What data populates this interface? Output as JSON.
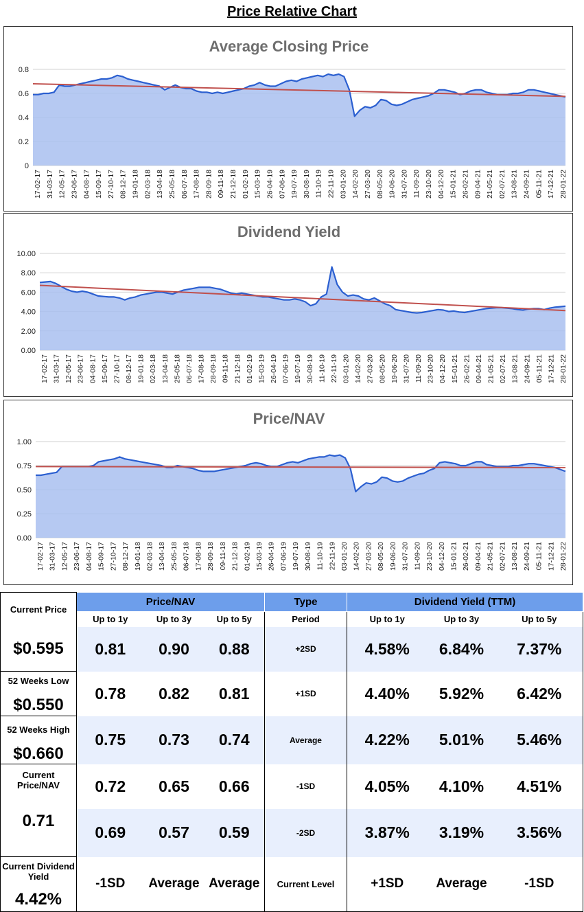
{
  "title": "Price Relative Chart",
  "x_tick_labels": [
    "17-02-17",
    "31-03-17",
    "12-05-17",
    "23-06-17",
    "04-08-17",
    "15-09-17",
    "27-10-17",
    "08-12-17",
    "19-01-18",
    "02-03-18",
    "13-04-18",
    "25-05-18",
    "06-07-18",
    "17-08-18",
    "28-09-18",
    "09-11-18",
    "21-12-18",
    "01-02-19",
    "15-03-19",
    "26-04-19",
    "07-06-19",
    "19-07-19",
    "30-08-19",
    "11-10-19",
    "22-11-19",
    "03-01-20",
    "14-02-20",
    "27-03-20",
    "08-05-20",
    "19-06-20",
    "31-07-20",
    "11-09-20",
    "23-10-20",
    "04-12-20",
    "15-01-21",
    "26-02-21",
    "09-04-21",
    "21-05-21",
    "02-07-21",
    "13-08-21",
    "24-09-21",
    "05-11-21",
    "17-12-21",
    "28-01-22"
  ],
  "chart_data": [
    {
      "type": "area",
      "title": "Average Closing Price",
      "ylim": [
        0,
        0.8
      ],
      "y_ticks": [
        "0",
        "0.2",
        "0.4",
        "0.6",
        "0.8"
      ],
      "y_tick_values": [
        0,
        0.2,
        0.4,
        0.6,
        0.8
      ],
      "trend": [
        0.68,
        0.575
      ],
      "values": [
        0.59,
        0.59,
        0.6,
        0.6,
        0.61,
        0.67,
        0.66,
        0.66,
        0.67,
        0.68,
        0.69,
        0.7,
        0.71,
        0.72,
        0.72,
        0.73,
        0.75,
        0.74,
        0.72,
        0.71,
        0.7,
        0.69,
        0.68,
        0.67,
        0.66,
        0.63,
        0.65,
        0.67,
        0.65,
        0.64,
        0.64,
        0.62,
        0.61,
        0.61,
        0.6,
        0.61,
        0.6,
        0.61,
        0.62,
        0.63,
        0.64,
        0.66,
        0.67,
        0.69,
        0.67,
        0.66,
        0.66,
        0.68,
        0.7,
        0.71,
        0.7,
        0.72,
        0.73,
        0.74,
        0.75,
        0.74,
        0.76,
        0.75,
        0.76,
        0.74,
        0.63,
        0.41,
        0.46,
        0.49,
        0.48,
        0.5,
        0.55,
        0.54,
        0.51,
        0.5,
        0.51,
        0.53,
        0.55,
        0.56,
        0.57,
        0.58,
        0.6,
        0.63,
        0.63,
        0.62,
        0.61,
        0.59,
        0.6,
        0.62,
        0.63,
        0.63,
        0.61,
        0.6,
        0.59,
        0.59,
        0.59,
        0.6,
        0.6,
        0.61,
        0.63,
        0.63,
        0.62,
        0.61,
        0.6,
        0.59,
        0.58,
        0.57
      ]
    },
    {
      "type": "area",
      "title": "Dividend Yield",
      "ylim": [
        0,
        10
      ],
      "y_ticks": [
        "0.00",
        "2.00",
        "4.00",
        "6.00",
        "8.00",
        "10.00"
      ],
      "y_tick_values": [
        0,
        2,
        4,
        6,
        8,
        10
      ],
      "trend": [
        6.7,
        4.1
      ],
      "values": [
        7.0,
        7.05,
        7.1,
        6.9,
        6.6,
        6.3,
        6.1,
        6.0,
        6.1,
        6.0,
        5.8,
        5.6,
        5.55,
        5.5,
        5.5,
        5.4,
        5.2,
        5.4,
        5.5,
        5.7,
        5.8,
        5.9,
        6.0,
        6.0,
        5.9,
        5.8,
        6.0,
        6.2,
        6.3,
        6.4,
        6.5,
        6.5,
        6.5,
        6.4,
        6.3,
        6.1,
        5.9,
        5.8,
        5.9,
        5.8,
        5.7,
        5.6,
        5.5,
        5.5,
        5.4,
        5.3,
        5.2,
        5.2,
        5.3,
        5.2,
        5.0,
        4.6,
        4.8,
        5.5,
        5.8,
        8.6,
        6.8,
        6.0,
        5.6,
        5.7,
        5.6,
        5.3,
        5.2,
        5.4,
        5.1,
        4.8,
        4.6,
        4.2,
        4.1,
        4.0,
        3.9,
        3.85,
        3.9,
        4.0,
        4.1,
        4.2,
        4.15,
        4.0,
        4.05,
        3.95,
        3.9,
        4.0,
        4.1,
        4.2,
        4.3,
        4.35,
        4.4,
        4.4,
        4.35,
        4.3,
        4.2,
        4.15,
        4.25,
        4.3,
        4.3,
        4.2,
        4.35,
        4.45,
        4.5,
        4.55
      ]
    },
    {
      "type": "area",
      "title": "Price/NAV",
      "ylim": [
        0,
        1
      ],
      "y_ticks": [
        "0.00",
        "0.25",
        "0.50",
        "0.75",
        "1.00"
      ],
      "y_tick_values": [
        0,
        0.25,
        0.5,
        0.75,
        1.0
      ],
      "trend": [
        0.74,
        0.73
      ],
      "values": [
        0.65,
        0.65,
        0.66,
        0.67,
        0.68,
        0.74,
        0.74,
        0.74,
        0.74,
        0.74,
        0.74,
        0.75,
        0.79,
        0.8,
        0.81,
        0.82,
        0.84,
        0.82,
        0.81,
        0.8,
        0.79,
        0.78,
        0.77,
        0.76,
        0.75,
        0.73,
        0.73,
        0.75,
        0.74,
        0.73,
        0.72,
        0.7,
        0.69,
        0.69,
        0.69,
        0.7,
        0.71,
        0.72,
        0.73,
        0.74,
        0.75,
        0.77,
        0.78,
        0.77,
        0.75,
        0.74,
        0.74,
        0.76,
        0.78,
        0.79,
        0.78,
        0.8,
        0.82,
        0.83,
        0.84,
        0.84,
        0.86,
        0.85,
        0.86,
        0.83,
        0.72,
        0.48,
        0.53,
        0.57,
        0.56,
        0.58,
        0.63,
        0.62,
        0.59,
        0.58,
        0.59,
        0.62,
        0.64,
        0.66,
        0.67,
        0.7,
        0.72,
        0.78,
        0.79,
        0.78,
        0.77,
        0.75,
        0.75,
        0.77,
        0.79,
        0.79,
        0.76,
        0.75,
        0.74,
        0.74,
        0.74,
        0.75,
        0.75,
        0.76,
        0.77,
        0.77,
        0.76,
        0.75,
        0.74,
        0.73,
        0.71,
        0.69
      ]
    }
  ],
  "summary": {
    "side": [
      {
        "label": "Current Price",
        "value": "$0.595"
      },
      {
        "label": "52 Weeks Low",
        "value": "$0.550"
      },
      {
        "label": "52 Weeks High",
        "value": "$0.660"
      },
      {
        "label": "Current Price/NAV",
        "value": "0.71"
      },
      {
        "label": "Current Dividend Yield",
        "value": "4.42%"
      }
    ],
    "headers": {
      "pnav": "Price/NAV",
      "type": "Type",
      "dy": "Dividend Yield (TTM)"
    },
    "subheaders": {
      "up1": "Up to 1y",
      "up3": "Up to 3y",
      "up5": "Up to 5y",
      "period": "Period"
    },
    "rows": [
      {
        "pnav": [
          "0.81",
          "0.90",
          "0.88"
        ],
        "type": "+2SD",
        "dy": [
          "4.58%",
          "6.84%",
          "7.37%"
        ]
      },
      {
        "pnav": [
          "0.78",
          "0.82",
          "0.81"
        ],
        "type": "+1SD",
        "dy": [
          "4.40%",
          "5.92%",
          "6.42%"
        ]
      },
      {
        "pnav": [
          "0.75",
          "0.73",
          "0.74"
        ],
        "type": "Average",
        "dy": [
          "4.22%",
          "5.01%",
          "5.46%"
        ]
      },
      {
        "pnav": [
          "0.72",
          "0.65",
          "0.66"
        ],
        "type": "-1SD",
        "dy": [
          "4.05%",
          "4.10%",
          "4.51%"
        ]
      },
      {
        "pnav": [
          "0.69",
          "0.57",
          "0.59"
        ],
        "type": "-2SD",
        "dy": [
          "3.87%",
          "3.19%",
          "3.56%"
        ]
      }
    ],
    "current_level": {
      "pnav": [
        "-1SD",
        "Average",
        "Average"
      ],
      "type": "Current Level",
      "dy": [
        "+1SD",
        "Average",
        "-1SD"
      ]
    }
  },
  "colors": {
    "line": "#2b5fd0",
    "fill": "#a9bff0",
    "trend": "#c0504d",
    "header": "#6d9eeb",
    "alt_row": "#e8effd"
  }
}
